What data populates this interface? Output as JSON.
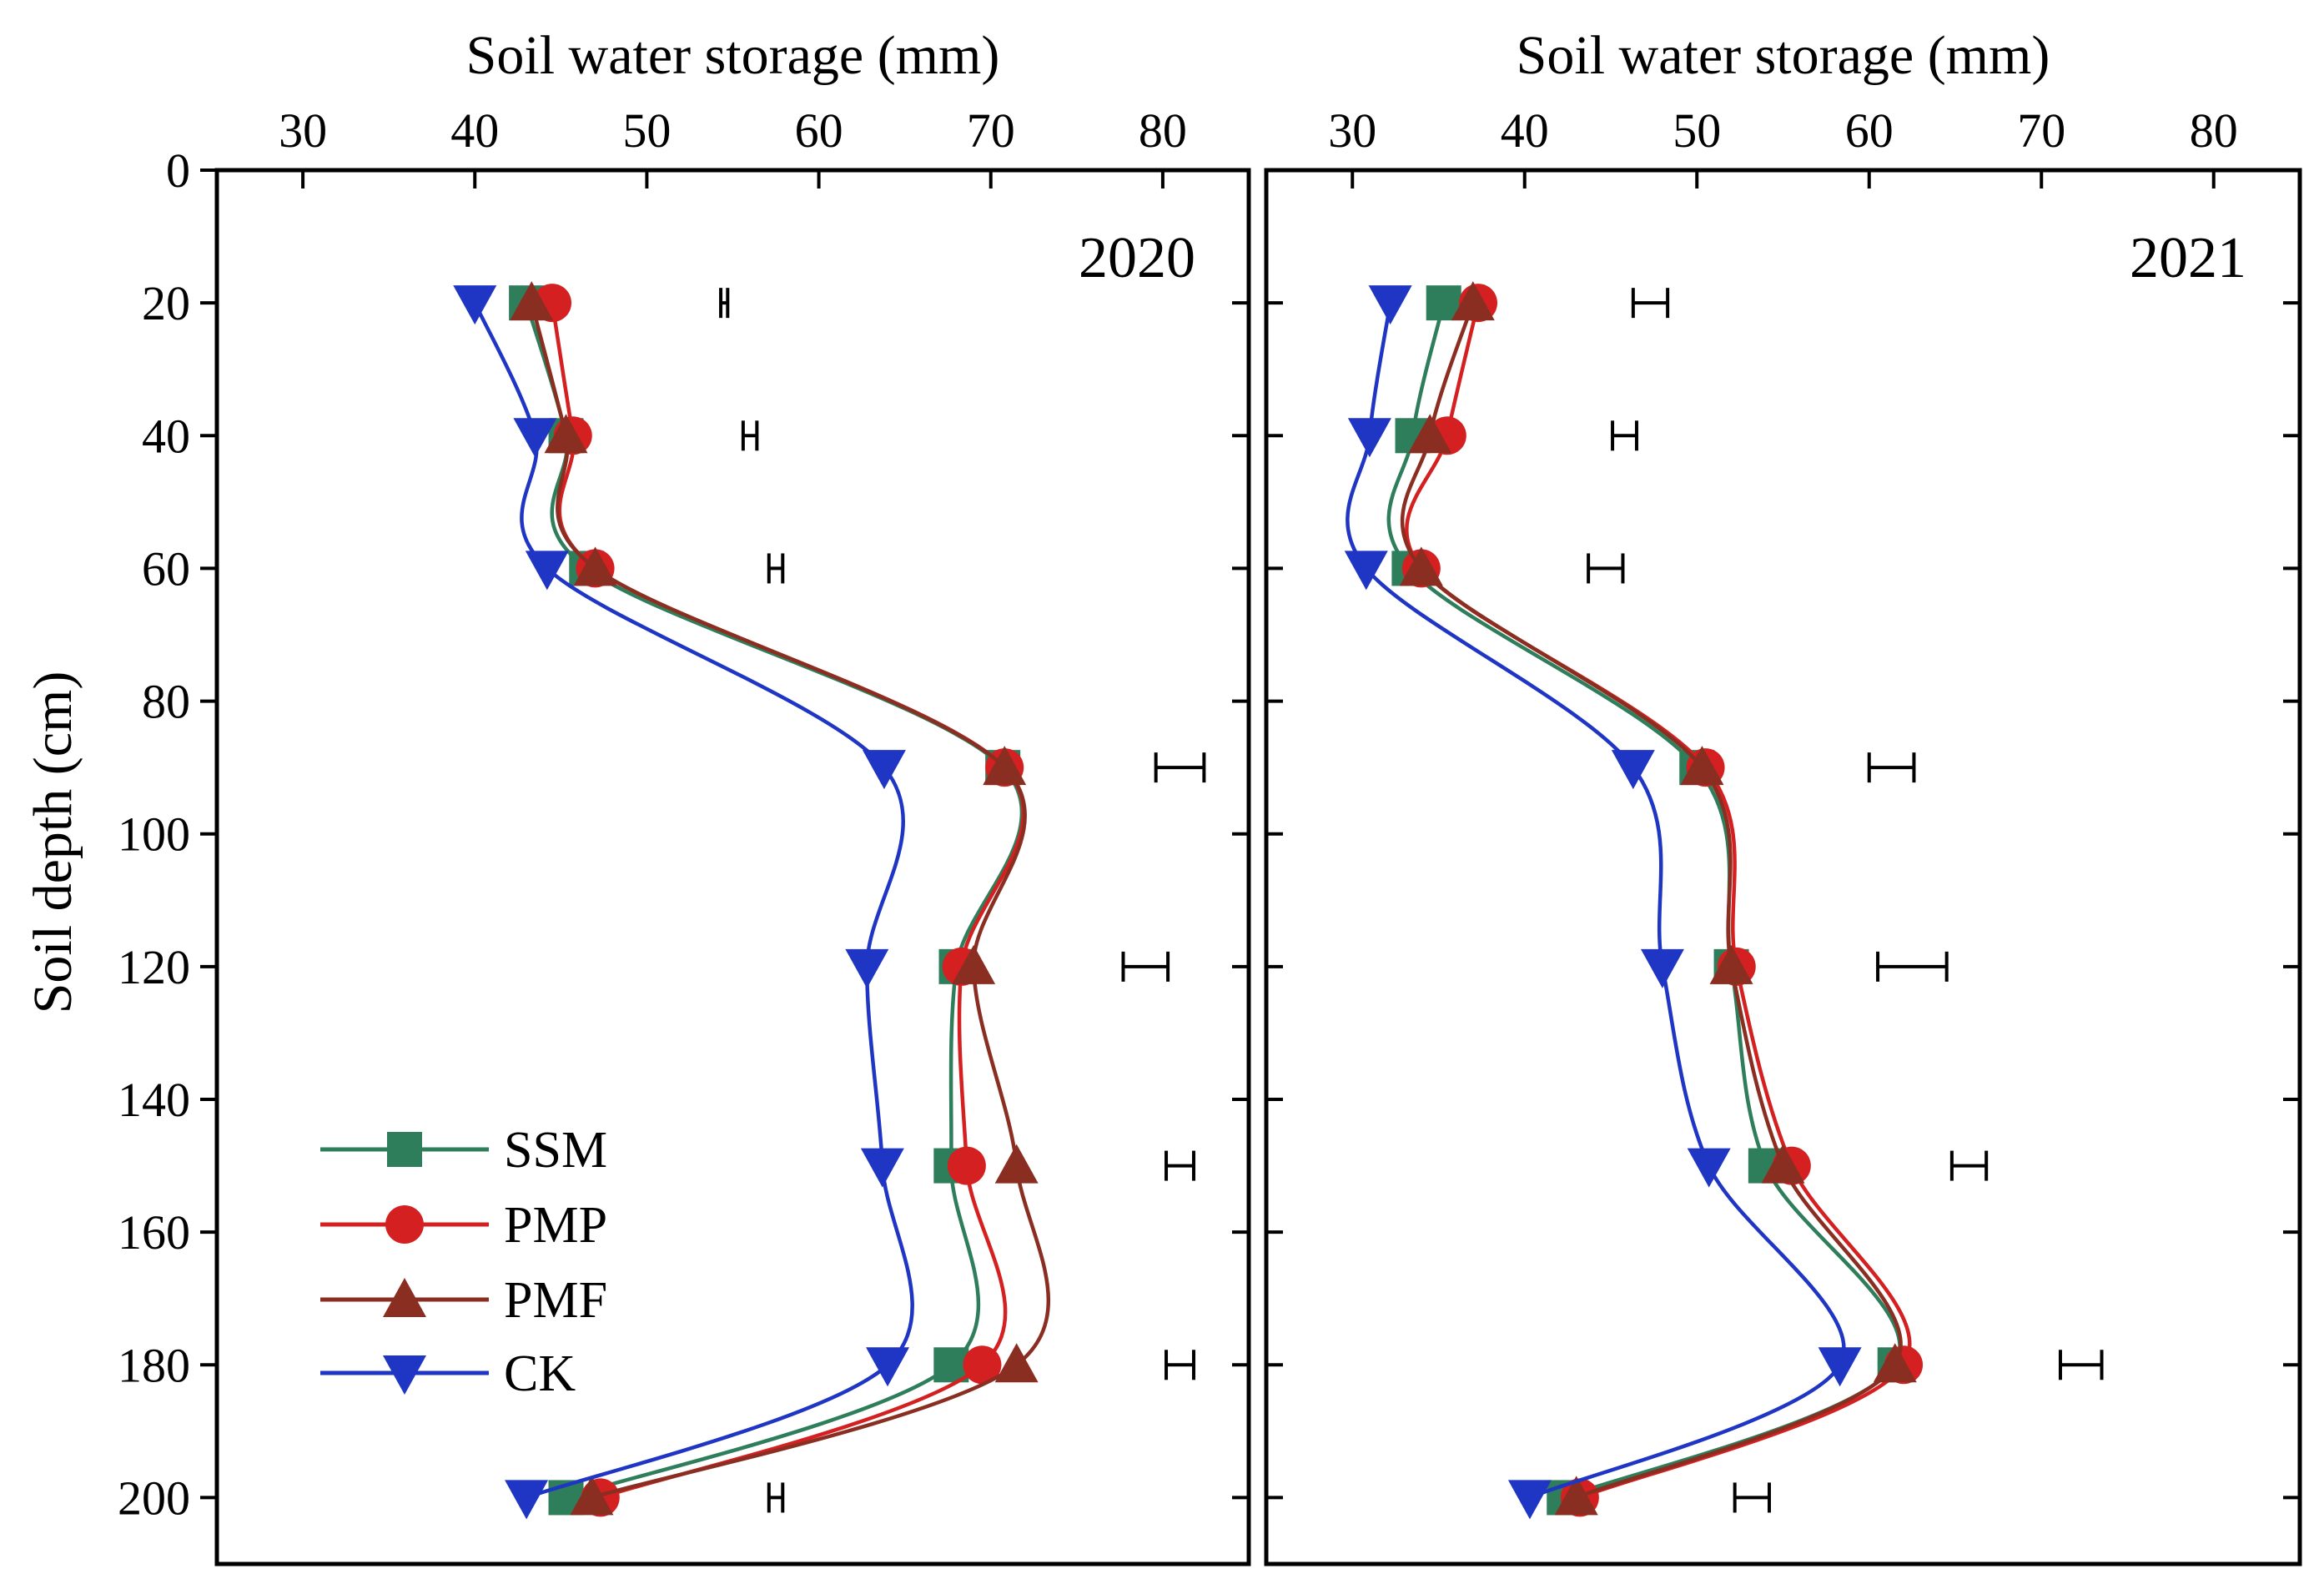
{
  "chart_data": {
    "type": "line",
    "ylabel": "Soil depth (cm)",
    "y_ticks": [
      0,
      20,
      40,
      60,
      80,
      100,
      120,
      140,
      160,
      180,
      200
    ],
    "ylim": [
      0,
      210
    ],
    "y_inverted": true,
    "depths": [
      20,
      40,
      60,
      90,
      120,
      150,
      180,
      200
    ],
    "x_ticks": [
      30,
      40,
      50,
      60,
      70,
      80
    ],
    "xlim": [
      25,
      85
    ],
    "legend_placement": "lower-left",
    "series_styles": [
      {
        "name": "SSM",
        "color": "#2e7d5b",
        "marker": "square"
      },
      {
        "name": "PMP",
        "color": "#d42020",
        "marker": "circle"
      },
      {
        "name": "PMF",
        "color": "#8b2e22",
        "marker": "triangle-up"
      },
      {
        "name": "CK",
        "color": "#1f35c4",
        "marker": "triangle-down"
      }
    ],
    "panels": [
      {
        "year": "2020",
        "xlabel": "Soil water storage (mm)",
        "series": [
          {
            "name": "SSM",
            "values": [
              43.0,
              45.3,
              46.5,
              70.7,
              68.0,
              67.7,
              67.7,
              45.3
            ]
          },
          {
            "name": "PMP",
            "values": [
              44.5,
              45.7,
              47.0,
              70.8,
              68.3,
              68.6,
              69.5,
              47.3
            ]
          },
          {
            "name": "PMF",
            "values": [
              43.3,
              45.3,
              47.0,
              70.8,
              69.0,
              71.5,
              71.5,
              46.8
            ]
          },
          {
            "name": "CK",
            "values": [
              40.0,
              43.5,
              44.2,
              63.8,
              62.8,
              63.7,
              64.0,
              43.0
            ]
          }
        ],
        "error_bars": [
          {
            "depth": 20,
            "x": 54.5,
            "half_width": 0.2
          },
          {
            "depth": 40,
            "x": 56.0,
            "half_width": 0.4
          },
          {
            "depth": 60,
            "x": 57.5,
            "half_width": 0.4
          },
          {
            "depth": 90,
            "x": 81.0,
            "half_width": 1.4
          },
          {
            "depth": 120,
            "x": 79.0,
            "half_width": 1.3
          },
          {
            "depth": 150,
            "x": 81.0,
            "half_width": 0.8
          },
          {
            "depth": 180,
            "x": 81.0,
            "half_width": 0.8
          },
          {
            "depth": 200,
            "x": 57.5,
            "half_width": 0.4
          }
        ]
      },
      {
        "year": "2021",
        "xlabel": "Soil water storage (mm)",
        "series": [
          {
            "name": "SSM",
            "values": [
              35.3,
              33.5,
              33.3,
              50.0,
              52.0,
              54.0,
              61.5,
              42.3
            ]
          },
          {
            "name": "PMP",
            "values": [
              37.3,
              35.5,
              34.0,
              50.5,
              52.3,
              55.5,
              62.0,
              43.2
            ]
          },
          {
            "name": "PMF",
            "values": [
              37.0,
              34.5,
              34.0,
              50.3,
              52.0,
              55.0,
              61.5,
              43.0
            ]
          },
          {
            "name": "CK",
            "values": [
              32.2,
              31.0,
              30.8,
              46.3,
              48.0,
              50.7,
              58.3,
              40.3
            ]
          }
        ],
        "error_bars": [
          {
            "depth": 20,
            "x": 47.3,
            "half_width": 1.0
          },
          {
            "depth": 40,
            "x": 45.8,
            "half_width": 0.7
          },
          {
            "depth": 60,
            "x": 44.7,
            "half_width": 1.0
          },
          {
            "depth": 90,
            "x": 61.3,
            "half_width": 1.3
          },
          {
            "depth": 120,
            "x": 62.5,
            "half_width": 2.0
          },
          {
            "depth": 150,
            "x": 65.8,
            "half_width": 1.0
          },
          {
            "depth": 180,
            "x": 72.3,
            "half_width": 1.2
          },
          {
            "depth": 200,
            "x": 53.2,
            "half_width": 1.0
          }
        ]
      }
    ]
  }
}
